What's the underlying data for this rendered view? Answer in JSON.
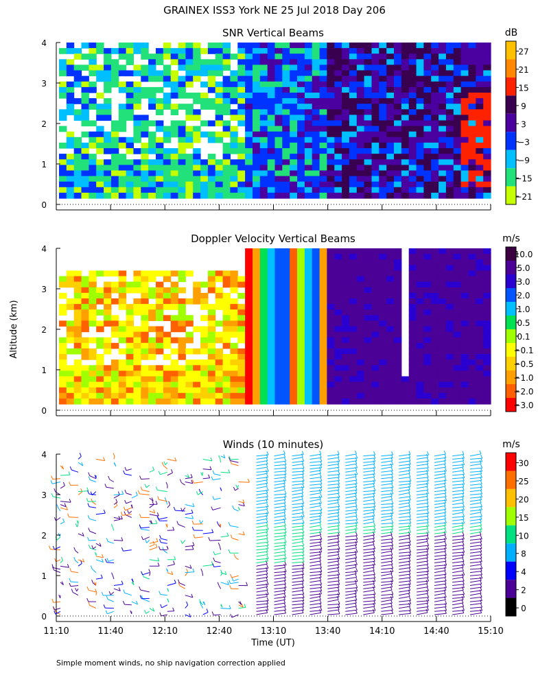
{
  "title": "GRAINEX ISS3 York NE  25 Jul 2018 Day 206",
  "footnote": "Simple moment winds, no ship navigation correction applied",
  "y_axis_label": "Altitude (km)",
  "x_axis_label": "Time (UT)",
  "x_tick_labels": [
    "11:10",
    "11:40",
    "12:10",
    "12:40",
    "13:10",
    "13:40",
    "14:10",
    "14:40",
    "15:10"
  ],
  "y_tick_labels": [
    "0",
    "1",
    "2",
    "3",
    "4"
  ],
  "panels": [
    {
      "title": "SNR Vertical Beams",
      "unit": "dB",
      "colorbar_labels": [
        "27",
        "21",
        "15",
        "9",
        "3",
        "−3",
        "−9",
        "−15",
        "−21"
      ],
      "colors": [
        "#ffc000",
        "#ff8800",
        "#ff2200",
        "#3a0050",
        "#4b00a0",
        "#0033ff",
        "#00bfff",
        "#22e07a",
        "#c6ff00"
      ]
    },
    {
      "title": "Doppler Velocity Vertical Beams",
      "unit": "m/s",
      "colorbar_labels": [
        "10.0",
        "5.0",
        "3.0",
        "2.0",
        "1.0",
        "0.5",
        "0.1",
        "−0.1",
        "−0.5",
        "−1.0",
        "−2.0",
        "−3.0"
      ],
      "colors": [
        "#3a0040",
        "#4b0096",
        "#2a00d0",
        "#0055ff",
        "#00bfff",
        "#00e050",
        "#a0ff00",
        "#ffff00",
        "#ffd000",
        "#ffa000",
        "#ff6000",
        "#ff0000"
      ]
    },
    {
      "title": "Winds (10 minutes)",
      "unit": "m/s",
      "colorbar_labels": [
        "30",
        "25",
        "20",
        "15",
        "10",
        "8",
        "4",
        "2",
        "0"
      ],
      "colors": [
        "#ff0000",
        "#ff7000",
        "#ffc000",
        "#a0ff00",
        "#00e080",
        "#00b0ff",
        "#0000ff",
        "#4b0096",
        "#000000"
      ]
    }
  ],
  "chart_data": [
    {
      "type": "heatmap",
      "title": "SNR Vertical Beams",
      "unit": "dB",
      "x_range": [
        "11:10",
        "15:10"
      ],
      "y_range_km": [
        0,
        4
      ],
      "regions": [
        {
          "time": "11:10-12:40",
          "altitude_km": "0-4",
          "value_db": "-21 to -3",
          "description": "patchy"
        },
        {
          "time": "12:40-13:40",
          "altitude_km": "0-4",
          "value_db": "-9 to 3"
        },
        {
          "time": "13:40-15:10",
          "altitude_km": "0-4",
          "value_db": "3 to 15"
        },
        {
          "time": "14:55-15:05",
          "altitude_km": "0.5-3",
          "value_db": "15"
        }
      ]
    },
    {
      "type": "heatmap",
      "title": "Doppler Velocity Vertical Beams",
      "unit": "m/s",
      "x_range": [
        "11:10",
        "15:10"
      ],
      "y_range_km": [
        0,
        4
      ],
      "regions": [
        {
          "time": "11:10-12:40",
          "altitude_km": "0-3.5",
          "value_ms": "-2.0 to 0.5"
        },
        {
          "time": "12:40-13:40",
          "altitude_km": "0-4",
          "value_ms": "-3.0 to 3.0",
          "description": "alternating vertical bands"
        },
        {
          "time": "13:40-15:10",
          "altitude_km": "0-4",
          "value_ms": "3.0 to 5.0"
        }
      ]
    },
    {
      "type": "wind_barbs",
      "title": "Winds (10 minutes)",
      "unit": "m/s",
      "interval_minutes": 10,
      "x_range": [
        "11:10",
        "15:10"
      ],
      "y_range_km": [
        0,
        4
      ],
      "regimes": [
        {
          "time": "11:10-12:50",
          "speed_ms": "2-15",
          "description": "variable direction"
        },
        {
          "time": "12:50-15:10",
          "speed_ms": "8-15",
          "description": "consistent direction, stronger aloft"
        }
      ]
    }
  ]
}
